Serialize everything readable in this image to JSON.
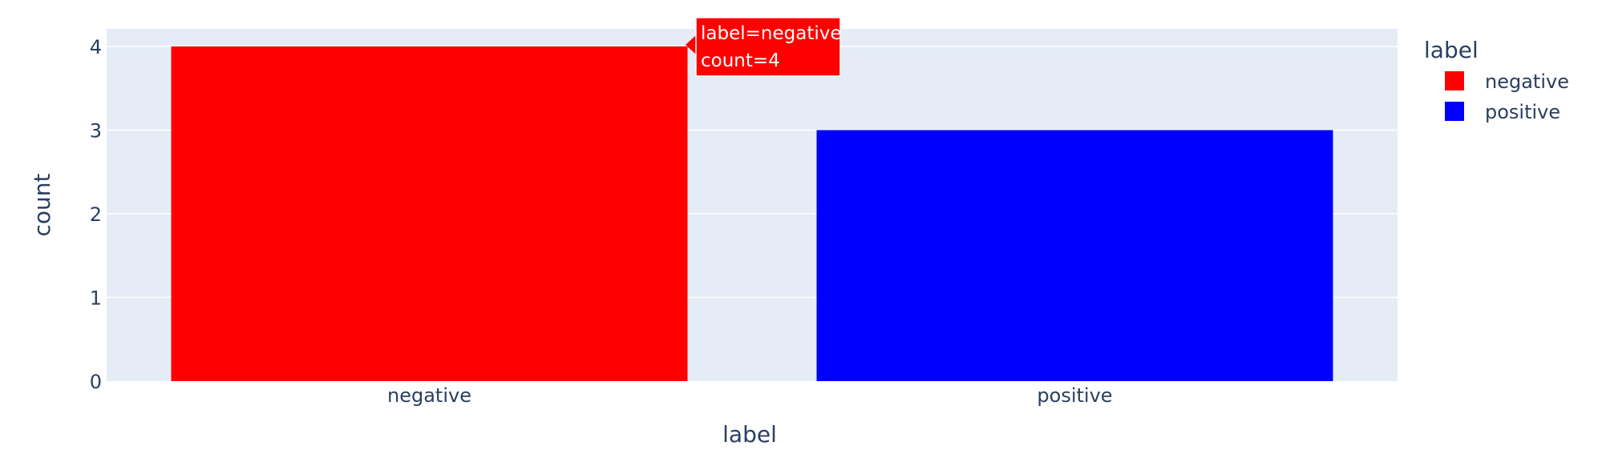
{
  "chart_data": {
    "type": "bar",
    "categories": [
      "negative",
      "positive"
    ],
    "values": [
      4,
      3
    ],
    "series": [
      {
        "name": "negative",
        "category": "negative",
        "value": 4,
        "color": "#ff0000"
      },
      {
        "name": "positive",
        "category": "positive",
        "value": 3,
        "color": "#0000ff"
      }
    ],
    "title": "",
    "xlabel": "label",
    "ylabel": "count",
    "ylim": [
      0,
      4
    ],
    "yticks": [
      "0",
      "1",
      "2",
      "3",
      "4"
    ],
    "grid": true,
    "legend": {
      "title": "label",
      "placement": "top-right",
      "entries": [
        {
          "label": "negative",
          "color": "#ff0000"
        },
        {
          "label": "positive",
          "color": "#0000ff"
        }
      ]
    },
    "tooltip": {
      "line1": "label=negative",
      "line2": "count=4",
      "color": "#ff0000"
    },
    "colors": {
      "plot_background": "#e5ecf6",
      "grid": "#ffffff",
      "text": "#2a3f5f"
    }
  }
}
